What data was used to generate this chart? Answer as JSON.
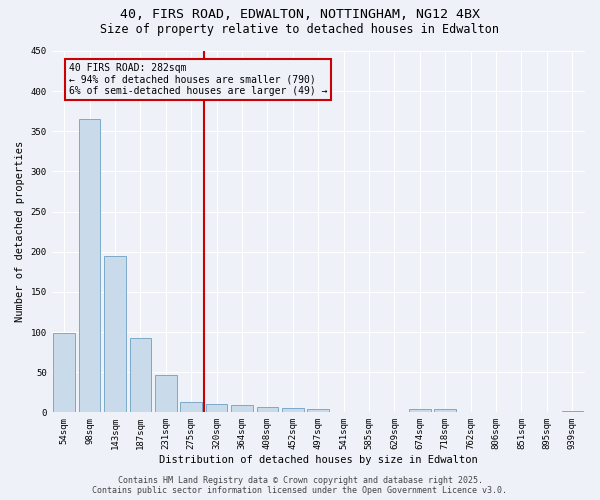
{
  "title_line1": "40, FIRS ROAD, EDWALTON, NOTTINGHAM, NG12 4BX",
  "title_line2": "Size of property relative to detached houses in Edwalton",
  "xlabel": "Distribution of detached houses by size in Edwalton",
  "ylabel": "Number of detached properties",
  "categories": [
    "54sqm",
    "98sqm",
    "143sqm",
    "187sqm",
    "231sqm",
    "275sqm",
    "320sqm",
    "364sqm",
    "408sqm",
    "452sqm",
    "497sqm",
    "541sqm",
    "585sqm",
    "629sqm",
    "674sqm",
    "718sqm",
    "762sqm",
    "806sqm",
    "851sqm",
    "895sqm",
    "939sqm"
  ],
  "values": [
    99,
    365,
    195,
    93,
    46,
    13,
    10,
    9,
    7,
    5,
    4,
    0,
    0,
    0,
    4,
    4,
    1,
    0,
    0,
    0,
    2
  ],
  "bar_color": "#c9daea",
  "bar_edge_color": "#7aaac8",
  "vline_x_index": 5.5,
  "vline_color": "#cc0000",
  "annotation_text": "40 FIRS ROAD: 282sqm\n← 94% of detached houses are smaller (790)\n6% of semi-detached houses are larger (49) →",
  "annotation_box_color": "#cc0000",
  "ylim": [
    0,
    450
  ],
  "yticks": [
    0,
    50,
    100,
    150,
    200,
    250,
    300,
    350,
    400,
    450
  ],
  "footer_line1": "Contains HM Land Registry data © Crown copyright and database right 2025.",
  "footer_line2": "Contains public sector information licensed under the Open Government Licence v3.0.",
  "bg_color": "#eef2f8",
  "grid_color": "#ffffff",
  "title_fontsize": 9.5,
  "subtitle_fontsize": 8.5,
  "axis_label_fontsize": 7.5,
  "tick_fontsize": 6.5,
  "annotation_fontsize": 7.0,
  "footer_fontsize": 6.0
}
